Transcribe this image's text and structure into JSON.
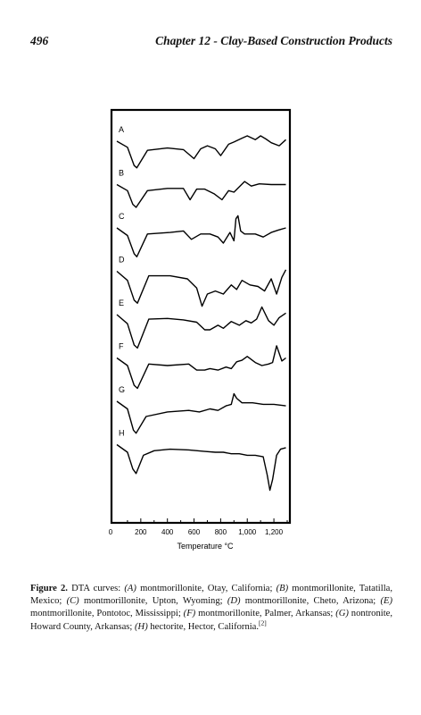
{
  "header": {
    "page_number": "496",
    "chapter_title": "Chapter 12 - Clay-Based Construction Products"
  },
  "chart_data": {
    "type": "line",
    "title": "",
    "xlabel": "Temperature °C",
    "ylabel": "",
    "x_ticks": [
      "0",
      "200",
      "400",
      "600",
      "800",
      "1,000",
      "1,200"
    ],
    "xlim": [
      0,
      1300
    ],
    "series": [
      {
        "name": "A",
        "label": "A",
        "offset": 0,
        "x": [
          20,
          100,
          150,
          170,
          250,
          400,
          520,
          600,
          650,
          700,
          760,
          800,
          860,
          900,
          960,
          1000,
          1060,
          1100,
          1140,
          1180,
          1240,
          1290
        ],
        "values": [
          0,
          -8,
          -32,
          -35,
          -12,
          -9,
          -11,
          -23,
          -10,
          -6,
          -10,
          -19,
          -4,
          -1,
          4,
          7,
          2,
          7,
          3,
          -2,
          -6,
          2
        ]
      },
      {
        "name": "B",
        "label": "B",
        "offset": 1,
        "x": [
          20,
          100,
          140,
          165,
          250,
          400,
          520,
          570,
          620,
          680,
          750,
          810,
          860,
          900,
          940,
          980,
          1030,
          1090,
          1180,
          1290
        ],
        "values": [
          0,
          -8,
          -26,
          -30,
          -8,
          -5,
          -5,
          -20,
          -6,
          -6,
          -12,
          -20,
          -8,
          -10,
          -3,
          4,
          -2,
          1,
          0,
          0
        ]
      },
      {
        "name": "C",
        "label": "C",
        "offset": 2,
        "x": [
          20,
          100,
          150,
          170,
          250,
          420,
          520,
          580,
          650,
          720,
          780,
          820,
          870,
          900,
          915,
          930,
          950,
          980,
          1060,
          1120,
          1180,
          1230,
          1290
        ],
        "values": [
          0,
          -10,
          -34,
          -38,
          -8,
          -6,
          -4,
          -15,
          -8,
          -8,
          -12,
          -20,
          -6,
          -17,
          12,
          16,
          -4,
          -8,
          -8,
          -12,
          -6,
          -3,
          0
        ]
      },
      {
        "name": "D",
        "label": "D",
        "offset": 3,
        "x": [
          20,
          100,
          150,
          175,
          260,
          420,
          550,
          620,
          660,
          700,
          760,
          820,
          880,
          920,
          960,
          1020,
          1080,
          1130,
          1180,
          1220,
          1260,
          1290
        ],
        "values": [
          0,
          -12,
          -38,
          -42,
          -6,
          -6,
          -10,
          -22,
          -46,
          -30,
          -26,
          -30,
          -18,
          -24,
          -12,
          -18,
          -20,
          -26,
          -10,
          -30,
          -8,
          2
        ]
      },
      {
        "name": "E",
        "label": "E",
        "offset": 4,
        "x": [
          20,
          100,
          150,
          175,
          260,
          400,
          520,
          620,
          680,
          720,
          780,
          820,
          880,
          940,
          990,
          1030,
          1070,
          1110,
          1160,
          1200,
          1240,
          1290
        ],
        "values": [
          0,
          -12,
          -40,
          -44,
          -6,
          -5,
          -7,
          -10,
          -20,
          -20,
          -14,
          -18,
          -9,
          -14,
          -8,
          -11,
          -6,
          10,
          -8,
          -14,
          -4,
          2
        ]
      },
      {
        "name": "F",
        "label": "F",
        "offset": 5,
        "x": [
          20,
          100,
          150,
          175,
          260,
          400,
          560,
          620,
          680,
          720,
          780,
          840,
          880,
          920,
          960,
          1000,
          1060,
          1110,
          1160,
          1190,
          1220,
          1260,
          1290
        ],
        "values": [
          0,
          -10,
          -36,
          -40,
          -8,
          -10,
          -8,
          -16,
          -16,
          -14,
          -16,
          -12,
          -14,
          -5,
          -3,
          2,
          -6,
          -10,
          -8,
          -6,
          16,
          -4,
          0
        ]
      },
      {
        "name": "G",
        "label": "G",
        "offset": 6,
        "x": [
          20,
          100,
          145,
          165,
          240,
          400,
          560,
          640,
          720,
          780,
          840,
          880,
          900,
          920,
          960,
          1040,
          1120,
          1200,
          1290
        ],
        "values": [
          0,
          -10,
          -38,
          -42,
          -20,
          -14,
          -12,
          -14,
          -10,
          -12,
          -6,
          -4,
          10,
          4,
          -2,
          -2,
          -4,
          -4,
          -6
        ]
      },
      {
        "name": "H",
        "label": "H",
        "offset": 7,
        "x": [
          20,
          100,
          140,
          165,
          220,
          300,
          420,
          560,
          680,
          760,
          820,
          880,
          940,
          1000,
          1060,
          1120,
          1150,
          1170,
          1190,
          1220,
          1250,
          1290
        ],
        "values": [
          0,
          -10,
          -32,
          -38,
          -14,
          -8,
          -6,
          -7,
          -9,
          -10,
          -10,
          -12,
          -12,
          -14,
          -14,
          -16,
          -40,
          -60,
          -46,
          -14,
          -6,
          -4
        ]
      }
    ]
  },
  "caption": {
    "label": "Figure 2.",
    "parts": [
      {
        "t": " DTA curves: ",
        "i": false
      },
      {
        "t": "(A)",
        "i": true
      },
      {
        "t": " montmorillonite, Otay, California; ",
        "i": false
      },
      {
        "t": "(B)",
        "i": true
      },
      {
        "t": " montmorillonite, Tatatilla, Mexico; ",
        "i": false
      },
      {
        "t": "(C)",
        "i": true
      },
      {
        "t": " montmorillonite, Upton, Wyoming; ",
        "i": false
      },
      {
        "t": "(D)",
        "i": true
      },
      {
        "t": " montmorillonite, Cheto, Arizona; ",
        "i": false
      },
      {
        "t": "(E)",
        "i": true
      },
      {
        "t": " montmorillonite, Pontotoc, Mississippi; ",
        "i": false
      },
      {
        "t": "(F)",
        "i": true
      },
      {
        "t": " montmorillonite, Palmer, Arkansas; ",
        "i": false
      },
      {
        "t": "(G)",
        "i": true
      },
      {
        "t": " nontronite, Howard County, Arkansas; ",
        "i": false
      },
      {
        "t": "(H)",
        "i": true
      },
      {
        "t": " hectorite, Hector, California.",
        "i": false
      }
    ],
    "ref": "[2]"
  }
}
